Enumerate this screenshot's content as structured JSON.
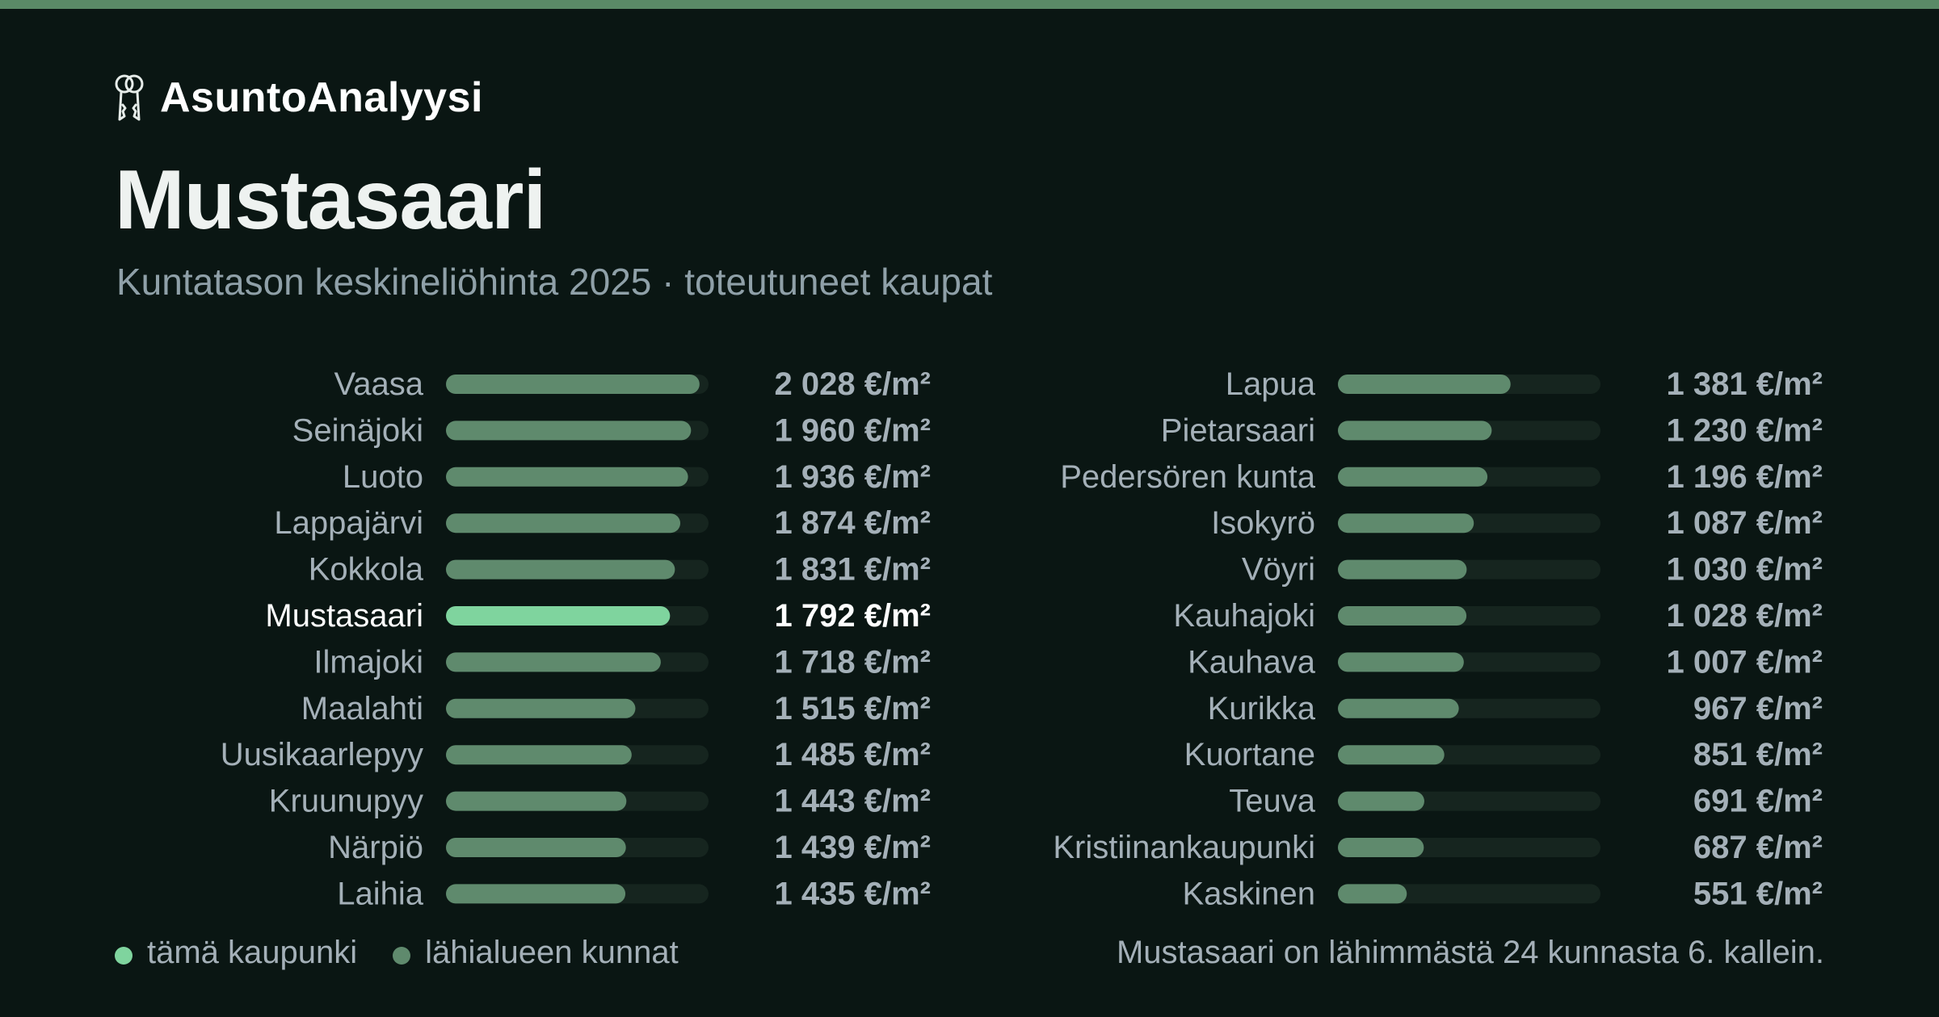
{
  "brand": {
    "name": "AsuntoAnalyysi",
    "icon": "keys-icon"
  },
  "header": {
    "title": "Mustasaari",
    "subtitle": "Kuntatason keskineliöhinta 2025 · toteutuneet kaupat"
  },
  "colors": {
    "background": "#0a1613",
    "accent_stripe": "#5a8a67",
    "highlight_bar": "#7fd49e",
    "normal_bar": "#5f8a6d",
    "track": "#16251f",
    "label": "#a4b0b8",
    "highlight_label": "#ffffff"
  },
  "chart_data": {
    "type": "bar",
    "orientation": "horizontal",
    "unit": "€/m²",
    "highlight": "Mustasaari",
    "xlim": [
      0,
      2100
    ],
    "categories": [
      "Vaasa",
      "Seinäjoki",
      "Luoto",
      "Lappajärvi",
      "Kokkola",
      "Mustasaari",
      "Ilmajoki",
      "Maalahti",
      "Uusikaarlepyy",
      "Kruunupyy",
      "Närpiö",
      "Laihia",
      "Lapua",
      "Pietarsaari",
      "Pedersören kunta",
      "Isokyrö",
      "Vöyri",
      "Kauhajoki",
      "Kauhava",
      "Kurikka",
      "Kuortane",
      "Teuva",
      "Kristiinankaupunki",
      "Kaskinen"
    ],
    "values": [
      2028,
      1960,
      1936,
      1874,
      1831,
      1792,
      1718,
      1515,
      1485,
      1443,
      1439,
      1435,
      1381,
      1230,
      1196,
      1087,
      1030,
      1028,
      1007,
      967,
      851,
      691,
      687,
      551
    ],
    "value_labels": [
      "2 028 €/m²",
      "1 960 €/m²",
      "1 936 €/m²",
      "1 874 €/m²",
      "1 831 €/m²",
      "1 792 €/m²",
      "1 718 €/m²",
      "1 515 €/m²",
      "1 485 €/m²",
      "1 443 €/m²",
      "1 439 €/m²",
      "1 435 €/m²",
      "1 381 €/m²",
      "1 230 €/m²",
      "1 196 €/m²",
      "1 087 €/m²",
      "1 030 €/m²",
      "1 028 €/m²",
      "1 007 €/m²",
      "967 €/m²",
      "851 €/m²",
      "691 €/m²",
      "687 €/m²",
      "551 €/m²"
    ],
    "columns": 2,
    "grid": false
  },
  "legend": {
    "this_city": "tämä kaupunki",
    "nearby": "lähialueen kunnat"
  },
  "footnote": "Mustasaari on lähimmästä 24 kunnasta 6. kallein."
}
